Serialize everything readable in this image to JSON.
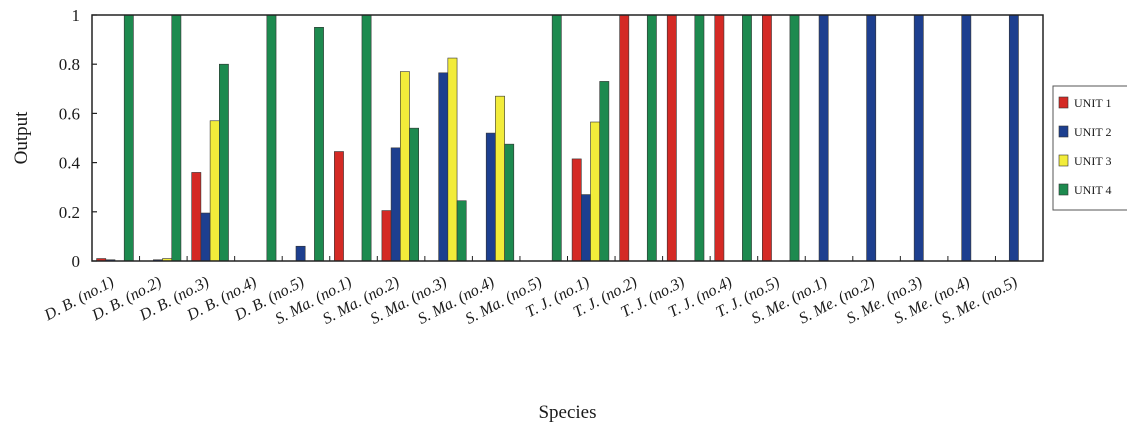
{
  "chart_data": {
    "type": "bar",
    "xlabel": "Species",
    "ylabel": "Output",
    "ylim": [
      0,
      1
    ],
    "yticks": [
      "0",
      "0.2",
      "0.4",
      "0.6",
      "0.8",
      "1"
    ],
    "grid": false,
    "legend_position": "right",
    "categories": [
      "D. B. (no.1)",
      "D. B. (no.2)",
      "D. B. (no.3)",
      "D. B. (no.4)",
      "D. B. (no.5)",
      "S. Ma. (no.1)",
      "S. Ma. (no.2)",
      "S. Ma. (no.3)",
      "S. Ma. (no.4)",
      "S. Ma. (no.5)",
      "T. J. (no.1)",
      "T. J. (no.2)",
      "T. J. (no.3)",
      "T. J. (no.4)",
      "T. J. (no.5)",
      "S. Me. (no.1)",
      "S. Me. (no.2)",
      "S. Me. (no.3)",
      "S. Me. (no.4)",
      "S. Me. (no.5)"
    ],
    "series": [
      {
        "name": "UNIT 1",
        "color": "#d42a25",
        "values": [
          0.01,
          0.0,
          0.36,
          0.0,
          0.0,
          0.445,
          0.205,
          0.0,
          0.0,
          0.0,
          0.415,
          1.0,
          1.0,
          1.0,
          1.0,
          0.0,
          0.0,
          0.0,
          0.0,
          0.0
        ]
      },
      {
        "name": "UNIT 2",
        "color": "#1d3f8f",
        "values": [
          0.005,
          0.005,
          0.195,
          0.0,
          0.06,
          0.0,
          0.46,
          0.765,
          0.52,
          0.0,
          0.27,
          0.0,
          0.0,
          0.0,
          0.0,
          1.0,
          1.0,
          1.0,
          1.0,
          1.0
        ]
      },
      {
        "name": "UNIT 3",
        "color": "#f2ec3a",
        "values": [
          0.0,
          0.01,
          0.57,
          0.0,
          0.0,
          0.0,
          0.77,
          0.825,
          0.67,
          0.0,
          0.565,
          0.0,
          0.0,
          0.0,
          0.0,
          0.0,
          0.0,
          0.0,
          0.0,
          0.0
        ]
      },
      {
        "name": "UNIT 4",
        "color": "#1d8a4f",
        "values": [
          1.0,
          1.0,
          0.8,
          1.0,
          0.95,
          1.0,
          0.54,
          0.245,
          0.475,
          1.0,
          0.73,
          1.0,
          1.0,
          1.0,
          1.0,
          0.0,
          0.0,
          0.0,
          0.0,
          0.0
        ]
      }
    ]
  }
}
